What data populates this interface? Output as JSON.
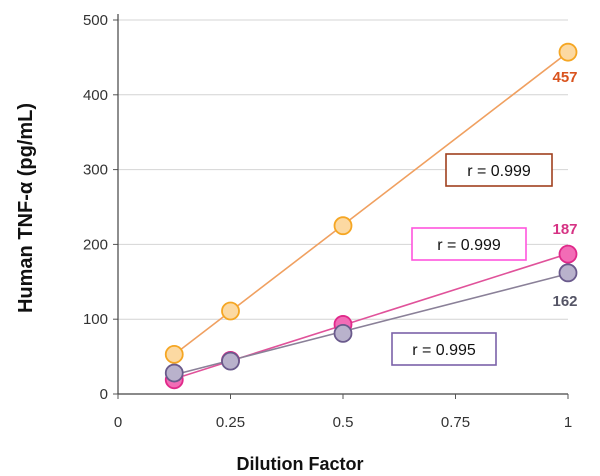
{
  "chart_data": {
    "type": "scatter",
    "title": "",
    "xlabel": "Dilution Factor",
    "ylabel": "Human TNF-α (pg/mL)",
    "xlim": [
      0,
      1
    ],
    "ylim": [
      0,
      500
    ],
    "x_ticks": [
      "0",
      "0.25",
      "0.5",
      "0.75",
      "1"
    ],
    "y_ticks": [
      "0",
      "100",
      "200",
      "300",
      "400",
      "500"
    ],
    "grid": "horizontal",
    "series": [
      {
        "color": "#f5a623",
        "fill": "#fcd9a2",
        "line_color": "#f0a060",
        "x": [
          0.125,
          0.25,
          0.5,
          1
        ],
        "y": [
          53,
          111,
          225,
          457
        ],
        "end_label": "457",
        "end_label_color": "#d9531e",
        "r_label": "r = 0.999",
        "r_box_color": "#a0401e"
      },
      {
        "color": "#e0298a",
        "fill": "#f26cb6",
        "line_color": "#e0529a",
        "x": [
          0.125,
          0.25,
          0.5,
          1
        ],
        "y": [
          19,
          45,
          93,
          187
        ],
        "end_label": "187",
        "end_label_color": "#d63384",
        "r_label": "r = 0.999",
        "r_box_color": "#ff55dd"
      },
      {
        "color": "#6a5a8c",
        "fill": "#b9b2cc",
        "line_color": "#8a8098",
        "x": [
          0.125,
          0.25,
          0.5,
          1
        ],
        "y": [
          28,
          44,
          81,
          162
        ],
        "end_label": "162",
        "end_label_color": "#555566",
        "r_label": "r = 0.995",
        "r_box_color": "#7b62a8"
      }
    ]
  }
}
